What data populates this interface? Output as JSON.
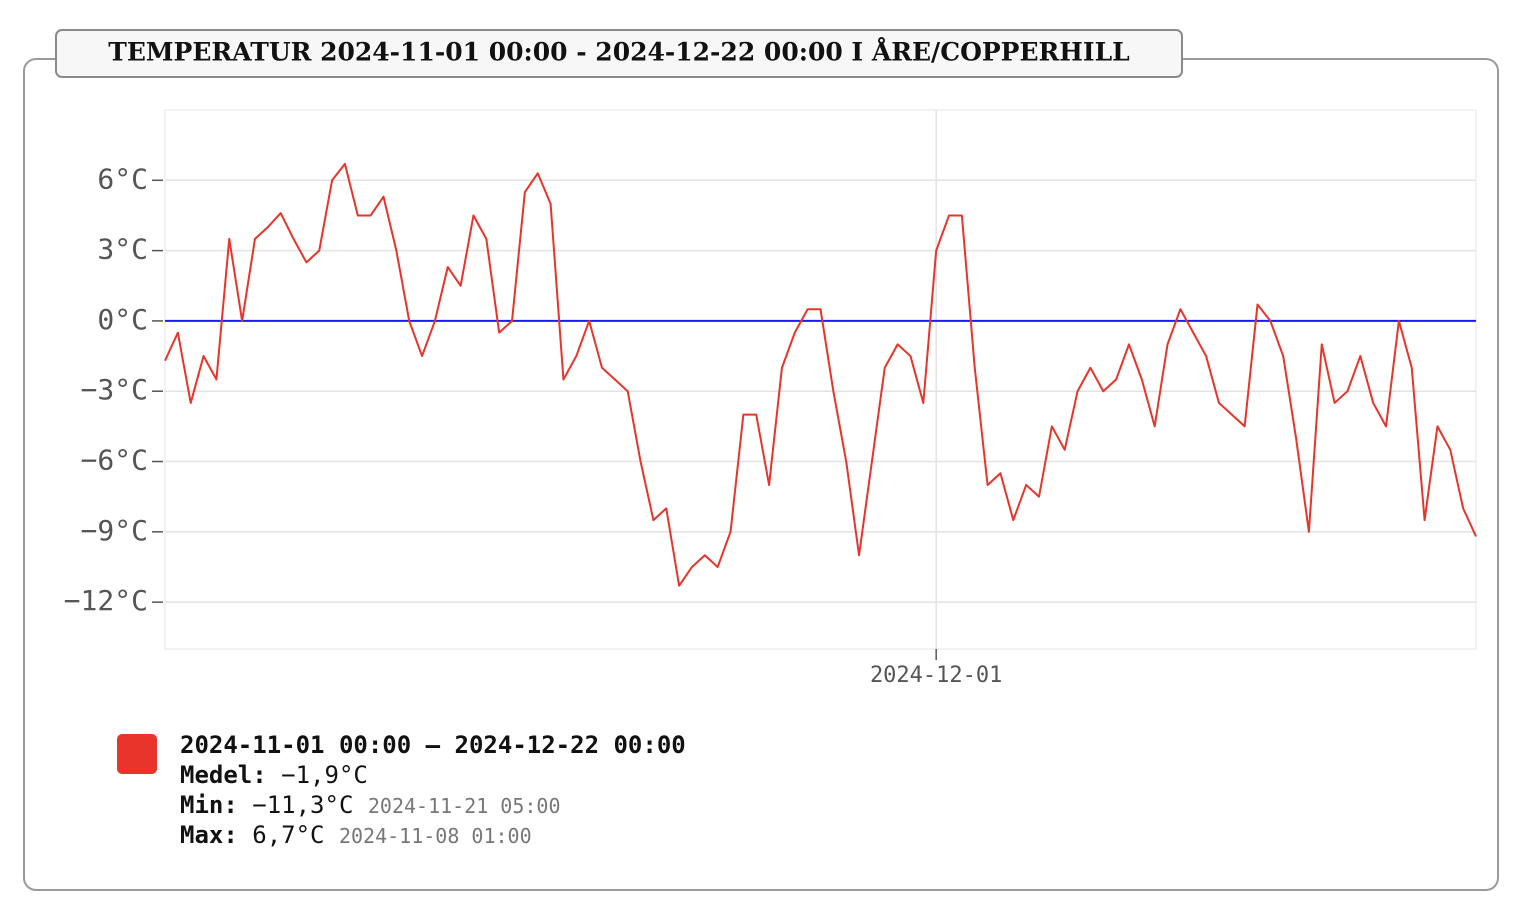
{
  "chart_data": {
    "type": "line",
    "title": "TEMPERATUR 2024-11-01 00:00 - 2024-12-22 00:00 I ÅRE/COPPERHILL",
    "x": [
      "2024-11-01 00:00",
      "2024-11-01 12:00",
      "2024-11-02 00:00",
      "2024-11-02 12:00",
      "2024-11-03 00:00",
      "2024-11-03 12:00",
      "2024-11-04 00:00",
      "2024-11-04 12:00",
      "2024-11-05 00:00",
      "2024-11-05 12:00",
      "2024-11-06 00:00",
      "2024-11-06 12:00",
      "2024-11-07 00:00",
      "2024-11-07 12:00",
      "2024-11-08 00:00",
      "2024-11-08 12:00",
      "2024-11-09 00:00",
      "2024-11-09 12:00",
      "2024-11-10 00:00",
      "2024-11-10 12:00",
      "2024-11-11 00:00",
      "2024-11-11 12:00",
      "2024-11-12 00:00",
      "2024-11-12 12:00",
      "2024-11-13 00:00",
      "2024-11-13 12:00",
      "2024-11-14 00:00",
      "2024-11-14 12:00",
      "2024-11-15 00:00",
      "2024-11-15 12:00",
      "2024-11-16 00:00",
      "2024-11-16 12:00",
      "2024-11-17 00:00",
      "2024-11-17 12:00",
      "2024-11-18 00:00",
      "2024-11-18 12:00",
      "2024-11-19 00:00",
      "2024-11-19 12:00",
      "2024-11-20 00:00",
      "2024-11-20 12:00",
      "2024-11-21 00:00",
      "2024-11-21 12:00",
      "2024-11-22 00:00",
      "2024-11-22 12:00",
      "2024-11-23 00:00",
      "2024-11-23 12:00",
      "2024-11-24 00:00",
      "2024-11-24 12:00",
      "2024-11-25 00:00",
      "2024-11-25 12:00",
      "2024-11-26 00:00",
      "2024-11-26 12:00",
      "2024-11-27 00:00",
      "2024-11-27 12:00",
      "2024-11-28 00:00",
      "2024-11-28 12:00",
      "2024-11-29 00:00",
      "2024-11-29 12:00",
      "2024-11-30 00:00",
      "2024-11-30 12:00",
      "2024-12-01 00:00",
      "2024-12-01 12:00",
      "2024-12-02 00:00",
      "2024-12-02 12:00",
      "2024-12-03 00:00",
      "2024-12-03 12:00",
      "2024-12-04 00:00",
      "2024-12-04 12:00",
      "2024-12-05 00:00",
      "2024-12-05 12:00",
      "2024-12-06 00:00",
      "2024-12-06 12:00",
      "2024-12-07 00:00",
      "2024-12-07 12:00",
      "2024-12-08 00:00",
      "2024-12-08 12:00",
      "2024-12-09 00:00",
      "2024-12-09 12:00",
      "2024-12-10 00:00",
      "2024-12-10 12:00",
      "2024-12-11 00:00",
      "2024-12-11 12:00",
      "2024-12-12 00:00",
      "2024-12-12 12:00",
      "2024-12-13 00:00",
      "2024-12-13 12:00",
      "2024-12-14 00:00",
      "2024-12-14 12:00",
      "2024-12-15 00:00",
      "2024-12-15 12:00",
      "2024-12-16 00:00",
      "2024-12-16 12:00",
      "2024-12-17 00:00",
      "2024-12-17 12:00",
      "2024-12-18 00:00",
      "2024-12-18 12:00",
      "2024-12-19 00:00",
      "2024-12-19 12:00",
      "2024-12-20 00:00",
      "2024-12-20 12:00",
      "2024-12-21 00:00",
      "2024-12-21 12:00",
      "2024-12-22 00:00"
    ],
    "series": [
      {
        "name": "2024-11-01 00:00 – 2024-12-22 00:00",
        "color": "#e8342a",
        "values": [
          -1.7,
          -0.5,
          -3.5,
          -1.5,
          -2.5,
          3.5,
          0,
          3.5,
          4,
          4.6,
          3.5,
          2.5,
          3,
          6,
          6.7,
          4.5,
          4.5,
          5.3,
          3,
          0,
          -1.5,
          0,
          2.3,
          1.5,
          4.5,
          3.5,
          -0.5,
          0,
          5.5,
          6.3,
          5,
          -2.5,
          -1.5,
          0,
          -2,
          -2.5,
          -3,
          -6,
          -8.5,
          -8,
          -11.3,
          -10.5,
          -10,
          -10.5,
          -9,
          -4,
          -4,
          -7,
          -2,
          -0.5,
          0.5,
          0.5,
          -3,
          -6,
          -10,
          -6,
          -2,
          -1,
          -1.5,
          -3.5,
          3,
          4.5,
          4.5,
          -2,
          -7,
          -6.5,
          -8.5,
          -7,
          -7.5,
          -4.5,
          -5.5,
          -3,
          -2,
          -3,
          -2.5,
          -1,
          -2.5,
          -4.5,
          -1,
          0.5,
          -0.5,
          -1.5,
          -3.5,
          -4,
          -4.5,
          0.7,
          0,
          -1.5,
          -5,
          -9,
          -1,
          -3.5,
          -3,
          -1.5,
          -3.5,
          -4.5,
          0,
          -2,
          -8.5,
          -4.5,
          -5.5,
          -8,
          -9.2
        ]
      }
    ],
    "xlim": [
      "2024-11-01 00:00",
      "2024-12-22 00:00"
    ],
    "xticks": [
      "2024-12-01"
    ],
    "ylim": [
      -14,
      9
    ],
    "yticks": [
      {
        "value": -12,
        "label": "−12°C"
      },
      {
        "value": -9,
        "label": "−9°C"
      },
      {
        "value": -6,
        "label": "−6°C"
      },
      {
        "value": -3,
        "label": "−3°C"
      },
      {
        "value": 0,
        "label": "0°C"
      },
      {
        "value": 3,
        "label": "3°C"
      },
      {
        "value": 6,
        "label": "6°C"
      }
    ],
    "grid": true,
    "reference_lines": [
      {
        "value": 0,
        "color": "#1a1aff"
      }
    ],
    "summary": {
      "mean_label": "Medel:",
      "mean": "−1,9°C",
      "min_label": "Min:",
      "min": "−11,3°C",
      "min_time": "2024-11-21 05:00",
      "max_label": "Max:",
      "max": "6,7°C",
      "max_time": "2024-11-08 01:00"
    }
  }
}
